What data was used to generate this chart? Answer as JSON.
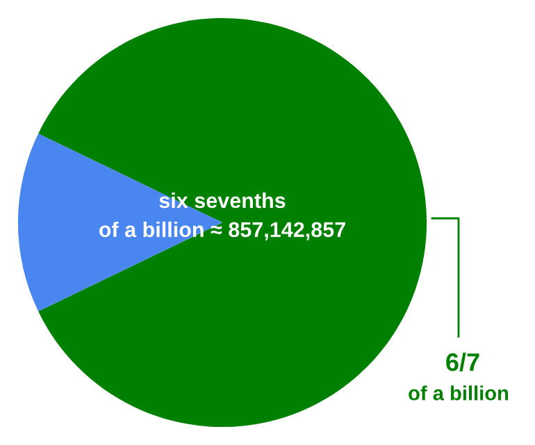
{
  "chart_data": {
    "type": "pie",
    "categories": [
      null,
      null
    ],
    "values": [
      85.7,
      14.3
    ],
    "colors": [
      "#008000",
      "#4a86f0"
    ],
    "annotations": [
      "six sevenths\nof a billion ≈ 857,142,857",
      "6/7",
      "of a billion"
    ]
  }
}
